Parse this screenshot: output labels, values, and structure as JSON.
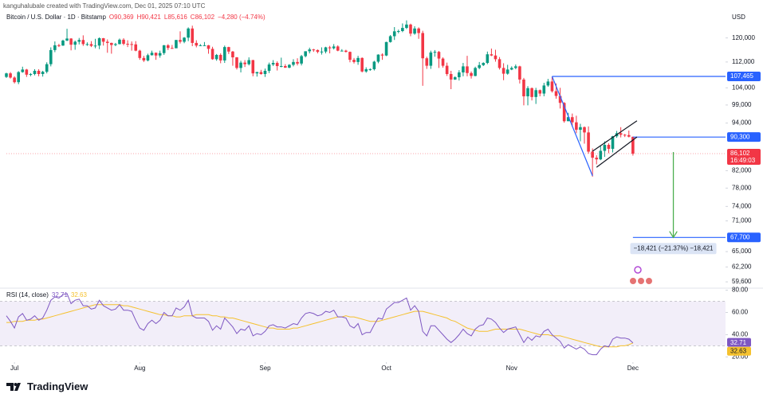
{
  "credit": "kanguhalubale created with TradingView.com, Dec 01, 2025 07:10 UTC",
  "brand": "TradingView",
  "chart_data": {
    "type": "candlestick",
    "title": "Bitcoin / U.S. Dollar · 1D · Bitstamp",
    "legend_values": [
      "O90,369",
      "H90,421",
      "L85,616",
      "C86,102",
      "−4,280 (−4.74%)"
    ],
    "currency": "USD",
    "up_color": "#089981",
    "down_color": "#f23645",
    "log_scale": true,
    "ylim": [
      58800,
      129000
    ],
    "yticks": [
      {
        "value": 120000,
        "label": "120,000"
      },
      {
        "value": 112000,
        "label": "112,000"
      },
      {
        "value": 104000,
        "label": "104,000"
      },
      {
        "value": 99000,
        "label": "99,000"
      },
      {
        "value": 94000,
        "label": "94,000"
      },
      {
        "value": 82000,
        "label": "82,000"
      },
      {
        "value": 78000,
        "label": "78,000"
      },
      {
        "value": 74000,
        "label": "74,000"
      },
      {
        "value": 71000,
        "label": "71,000"
      },
      {
        "value": 65000,
        "label": "65,000"
      },
      {
        "value": 62200,
        "label": "62,200"
      },
      {
        "value": 59600,
        "label": "59,600"
      }
    ],
    "xticks": [
      {
        "value": 2,
        "label": "Jul"
      },
      {
        "value": 33,
        "label": "Aug"
      },
      {
        "value": 64,
        "label": "Sep"
      },
      {
        "value": 94,
        "label": "Oct"
      },
      {
        "value": 125,
        "label": "Nov"
      },
      {
        "value": 155,
        "label": "Dec"
      }
    ],
    "ohlc": [
      [
        107300,
        108600,
        107000,
        108400
      ],
      [
        108400,
        108800,
        106800,
        107100
      ],
      [
        107100,
        107500,
        105300,
        105700
      ],
      [
        105700,
        109100,
        105100,
        108800
      ],
      [
        108800,
        110500,
        108600,
        109600
      ],
      [
        109600,
        109800,
        107300,
        108000
      ],
      [
        108000,
        108500,
        107500,
        108200
      ],
      [
        108200,
        109700,
        107800,
        109200
      ],
      [
        109200,
        109700,
        107500,
        108200
      ],
      [
        108200,
        109200,
        107400,
        108900
      ],
      [
        108900,
        111900,
        108400,
        111300
      ],
      [
        111300,
        116800,
        110600,
        115900
      ],
      [
        115900,
        118800,
        115200,
        117500
      ],
      [
        117500,
        118000,
        116900,
        117400
      ],
      [
        117400,
        119400,
        117300,
        119100
      ],
      [
        119100,
        123200,
        118900,
        119800
      ],
      [
        119800,
        119900,
        115800,
        117700
      ],
      [
        117700,
        119100,
        116000,
        118700
      ],
      [
        118700,
        120000,
        117800,
        119300
      ],
      [
        119300,
        120900,
        117300,
        117900
      ],
      [
        117900,
        118500,
        117300,
        117900
      ],
      [
        117900,
        118900,
        116900,
        117300
      ],
      [
        117300,
        119700,
        116500,
        117400
      ],
      [
        117400,
        120200,
        116200,
        119900
      ],
      [
        119900,
        120000,
        117400,
        118700
      ],
      [
        118700,
        119500,
        115000,
        118300
      ],
      [
        118300,
        118400,
        114700,
        117600
      ],
      [
        117600,
        118300,
        117200,
        117900
      ],
      [
        117900,
        119800,
        117800,
        119400
      ],
      [
        119400,
        119900,
        117500,
        118000
      ],
      [
        118000,
        119200,
        116900,
        117900
      ],
      [
        117900,
        118800,
        115700,
        117800
      ],
      [
        117800,
        118900,
        115500,
        115700
      ],
      [
        115700,
        116000,
        112700,
        113300
      ],
      [
        113300,
        114000,
        112000,
        112500
      ],
      [
        112500,
        114700,
        112200,
        114200
      ],
      [
        114200,
        115700,
        114100,
        115000
      ],
      [
        115000,
        115100,
        112700,
        114100
      ],
      [
        114100,
        115700,
        113400,
        114900
      ],
      [
        114900,
        117600,
        114300,
        117500
      ],
      [
        117500,
        117900,
        115900,
        116600
      ],
      [
        116600,
        117600,
        116300,
        116500
      ],
      [
        116500,
        119300,
        116500,
        119300
      ],
      [
        119300,
        122300,
        118100,
        118700
      ],
      [
        118700,
        120300,
        118200,
        120100
      ],
      [
        120100,
        123700,
        118900,
        123300
      ],
      [
        123300,
        124300,
        117200,
        118300
      ],
      [
        118300,
        119200,
        116800,
        117400
      ],
      [
        117400,
        117900,
        117200,
        117500
      ],
      [
        117500,
        118600,
        117300,
        117500
      ],
      [
        117500,
        117600,
        114700,
        116300
      ],
      [
        116300,
        117000,
        112700,
        112900
      ],
      [
        112900,
        114600,
        112400,
        114300
      ],
      [
        114300,
        114800,
        111600,
        112500
      ],
      [
        112500,
        117400,
        111700,
        116900
      ],
      [
        116900,
        117000,
        114600,
        115400
      ],
      [
        115400,
        115600,
        110800,
        113500
      ],
      [
        113500,
        113600,
        109600,
        110100
      ],
      [
        110100,
        112400,
        108700,
        111800
      ],
      [
        111800,
        112600,
        110400,
        111300
      ],
      [
        111300,
        113500,
        110900,
        112600
      ],
      [
        112600,
        112700,
        107500,
        108400
      ],
      [
        108400,
        108900,
        107400,
        108800
      ],
      [
        108800,
        109500,
        108000,
        108200
      ],
      [
        108200,
        109900,
        107300,
        109200
      ],
      [
        109200,
        111800,
        108500,
        111200
      ],
      [
        111200,
        112600,
        110700,
        111700
      ],
      [
        111700,
        112200,
        109300,
        110700
      ],
      [
        110700,
        113400,
        110300,
        110700
      ],
      [
        110700,
        111300,
        110100,
        110200
      ],
      [
        110200,
        111300,
        110000,
        111100
      ],
      [
        111100,
        112900,
        110600,
        112000
      ],
      [
        112000,
        113200,
        110900,
        111500
      ],
      [
        111500,
        114300,
        110900,
        113900
      ],
      [
        113900,
        115500,
        113500,
        115500
      ],
      [
        115500,
        116700,
        114800,
        116100
      ],
      [
        116100,
        116300,
        115300,
        115900
      ],
      [
        115900,
        116100,
        114800,
        115300
      ],
      [
        115300,
        116800,
        114400,
        115400
      ],
      [
        115400,
        117000,
        114800,
        116800
      ],
      [
        116800,
        117300,
        114800,
        116500
      ],
      [
        116500,
        117900,
        116100,
        117100
      ],
      [
        117100,
        117500,
        115500,
        115700
      ],
      [
        115700,
        116200,
        115500,
        115700
      ],
      [
        115700,
        116000,
        115100,
        115300
      ],
      [
        115300,
        115400,
        111900,
        112700
      ],
      [
        112700,
        113300,
        111500,
        112000
      ],
      [
        112000,
        114000,
        111100,
        113300
      ],
      [
        113300,
        113500,
        108700,
        109000
      ],
      [
        109000,
        110300,
        108600,
        109700
      ],
      [
        109700,
        110000,
        109200,
        109700
      ],
      [
        109700,
        112400,
        109300,
        112100
      ],
      [
        112100,
        114500,
        111600,
        114400
      ],
      [
        114400,
        114800,
        112700,
        114100
      ],
      [
        114100,
        118700,
        113900,
        118600
      ],
      [
        118600,
        121000,
        118400,
        120600
      ],
      [
        120600,
        123800,
        119300,
        122300
      ],
      [
        122300,
        122900,
        121600,
        122400
      ],
      [
        122400,
        125100,
        122000,
        123500
      ],
      [
        123500,
        126200,
        123100,
        124700
      ],
      [
        124700,
        125000,
        120600,
        121500
      ],
      [
        121500,
        124100,
        121100,
        123300
      ],
      [
        123300,
        123700,
        119700,
        121700
      ],
      [
        121700,
        122500,
        104600,
        113200
      ],
      [
        113200,
        113700,
        109800,
        110800
      ],
      [
        110800,
        115700,
        109800,
        115100
      ],
      [
        115100,
        115900,
        113700,
        115300
      ],
      [
        115300,
        115600,
        110100,
        113100
      ],
      [
        113100,
        113500,
        110200,
        110800
      ],
      [
        110800,
        111800,
        107600,
        108200
      ],
      [
        108200,
        109200,
        103600,
        106500
      ],
      [
        106500,
        107500,
        106400,
        107200
      ],
      [
        107200,
        109400,
        106200,
        108700
      ],
      [
        108700,
        111700,
        107500,
        110600
      ],
      [
        110600,
        114000,
        107500,
        108500
      ],
      [
        108500,
        109000,
        106800,
        107600
      ],
      [
        107600,
        110500,
        107500,
        110100
      ],
      [
        110100,
        112000,
        109700,
        111000
      ],
      [
        111000,
        111900,
        110700,
        111700
      ],
      [
        111700,
        115400,
        111300,
        114500
      ],
      [
        114500,
        116400,
        113900,
        114100
      ],
      [
        114100,
        116000,
        112100,
        112900
      ],
      [
        112900,
        113600,
        109600,
        110100
      ],
      [
        110100,
        111600,
        106300,
        108300
      ],
      [
        108300,
        111100,
        108000,
        109600
      ],
      [
        109600,
        110600,
        109400,
        110100
      ],
      [
        110100,
        111200,
        109700,
        110600
      ],
      [
        110600,
        110800,
        105300,
        106500
      ],
      [
        106500,
        107000,
        98900,
        101500
      ],
      [
        101500,
        104500,
        98900,
        103900
      ],
      [
        103900,
        104100,
        100300,
        101300
      ],
      [
        101300,
        104000,
        99300,
        103300
      ],
      [
        103300,
        103500,
        101500,
        102300
      ],
      [
        102300,
        105500,
        101500,
        104700
      ],
      [
        104700,
        106700,
        104300,
        105900
      ],
      [
        105900,
        107400,
        102600,
        103000
      ],
      [
        103000,
        105300,
        100800,
        101600
      ],
      [
        101600,
        104000,
        98000,
        99600
      ],
      [
        99600,
        99800,
        94100,
        94500
      ],
      [
        94500,
        96800,
        94500,
        95600
      ],
      [
        95600,
        96600,
        93000,
        94200
      ],
      [
        94200,
        96000,
        91300,
        92200
      ],
      [
        92200,
        93800,
        89200,
        92900
      ],
      [
        92900,
        93100,
        88600,
        91500
      ],
      [
        91500,
        93100,
        86100,
        86600
      ],
      [
        86600,
        87400,
        80600,
        85100
      ],
      [
        85100,
        85700,
        83500,
        84700
      ],
      [
        84700,
        88000,
        84500,
        86800
      ],
      [
        86800,
        89200,
        85300,
        88300
      ],
      [
        88300,
        88700,
        86200,
        87300
      ],
      [
        87300,
        90600,
        86400,
        90500
      ],
      [
        90500,
        91900,
        90100,
        91300
      ],
      [
        91300,
        92900,
        90200,
        90900
      ],
      [
        90900,
        91100,
        90300,
        90800
      ],
      [
        90800,
        92000,
        90200,
        90400
      ],
      [
        90369,
        90421,
        85616,
        86102
      ]
    ],
    "price_lines": [
      {
        "value": 107465,
        "label": "107,465",
        "start": 135,
        "color": "#2962ff"
      },
      {
        "value": 90300,
        "label": "90,300",
        "start": 155,
        "color": "#2962ff"
      },
      {
        "value": 67700,
        "label": "67,700",
        "start": 155,
        "color": "#2962ff"
      }
    ],
    "last_price": {
      "value": 86102,
      "label": "86,102",
      "countdown": "16:49:03",
      "color": "#f23645"
    },
    "trendlines": [
      {
        "points": [
          [
            135,
            107465
          ],
          [
            145,
            80800
          ]
        ],
        "color": "#2962ff"
      },
      {
        "points": [
          [
            145,
            86700
          ],
          [
            156,
            94600
          ]
        ],
        "color": "#131722"
      },
      {
        "points": [
          [
            146,
            82800
          ],
          [
            156,
            90300
          ]
        ],
        "color": "#131722"
      }
    ],
    "arrow": {
      "points": [
        [
          165,
          86500
        ],
        [
          165,
          67700
        ]
      ],
      "color": "#4caf50"
    },
    "measure": "−18,421 (−21.37%) −18,421",
    "rsi": {
      "title": "RSI (14, close)",
      "color": "#7e57c2",
      "ma_color": "#f5c12e",
      "ylim": [
        16,
        84
      ],
      "band": [
        30,
        70
      ],
      "yticks": [
        {
          "value": 80,
          "label": "80.00"
        },
        {
          "value": 60,
          "label": "60.00"
        },
        {
          "value": 40,
          "label": "40.00"
        },
        {
          "value": 20,
          "label": "20.00"
        }
      ],
      "values": [
        57,
        52,
        46,
        56,
        59,
        53,
        54,
        57,
        53,
        55,
        62,
        71,
        74,
        73,
        76,
        77,
        68,
        71,
        72,
        66,
        66,
        63,
        64,
        71,
        66,
        64,
        62,
        63,
        67,
        62,
        62,
        61,
        53,
        46,
        44,
        50,
        53,
        50,
        53,
        60,
        57,
        57,
        64,
        62,
        65,
        71,
        57,
        55,
        55,
        55,
        52,
        44,
        48,
        45,
        55,
        51,
        47,
        41,
        45,
        44,
        48,
        39,
        41,
        40,
        43,
        48,
        49,
        47,
        47,
        46,
        48,
        50,
        49,
        55,
        59,
        60,
        59,
        57,
        58,
        61,
        60,
        62,
        56,
        56,
        55,
        48,
        46,
        50,
        40,
        42,
        42,
        49,
        55,
        54,
        63,
        66,
        69,
        69,
        71,
        73,
        62,
        66,
        61,
        43,
        39,
        48,
        48,
        44,
        40,
        36,
        33,
        36,
        40,
        45,
        41,
        39,
        45,
        48,
        49,
        55,
        54,
        51,
        46,
        42,
        45,
        46,
        47,
        40,
        33,
        38,
        35,
        39,
        38,
        43,
        45,
        40,
        37,
        34,
        28,
        31,
        29,
        27,
        29,
        27,
        23,
        22,
        22,
        27,
        30,
        29,
        36,
        38,
        37,
        37,
        36,
        32.71
      ],
      "ma_values": [
        51,
        51,
        52,
        52,
        52,
        53,
        53,
        53,
        54,
        54,
        55,
        56,
        57,
        58,
        59,
        60,
        61,
        62,
        63,
        64,
        65,
        66,
        67,
        67,
        67,
        67,
        67,
        67,
        67,
        66,
        66,
        65,
        64,
        63,
        62,
        61,
        60,
        59,
        58,
        58,
        57,
        57,
        56,
        56,
        57,
        57,
        57,
        58,
        58,
        58,
        58,
        57,
        57,
        56,
        56,
        55,
        55,
        54,
        53,
        52,
        51,
        50,
        49,
        48,
        47,
        46,
        46,
        45,
        45,
        45,
        45,
        46,
        46,
        47,
        48,
        49,
        50,
        51,
        52,
        53,
        54,
        55,
        56,
        56,
        57,
        56,
        56,
        55,
        54,
        53,
        52,
        52,
        52,
        53,
        54,
        55,
        56,
        57,
        58,
        59,
        60,
        61,
        61,
        61,
        60,
        59,
        58,
        57,
        56,
        55,
        53,
        52,
        50,
        48,
        46,
        45,
        44,
        43,
        43,
        43,
        44,
        45,
        45,
        45,
        45,
        45,
        45,
        45,
        44,
        43,
        42,
        41,
        40,
        40,
        40,
        39,
        39,
        39,
        38,
        37,
        36,
        35,
        34,
        33,
        32,
        31,
        30,
        29,
        29,
        29,
        29,
        29,
        30,
        30,
        31,
        32.63
      ]
    }
  }
}
